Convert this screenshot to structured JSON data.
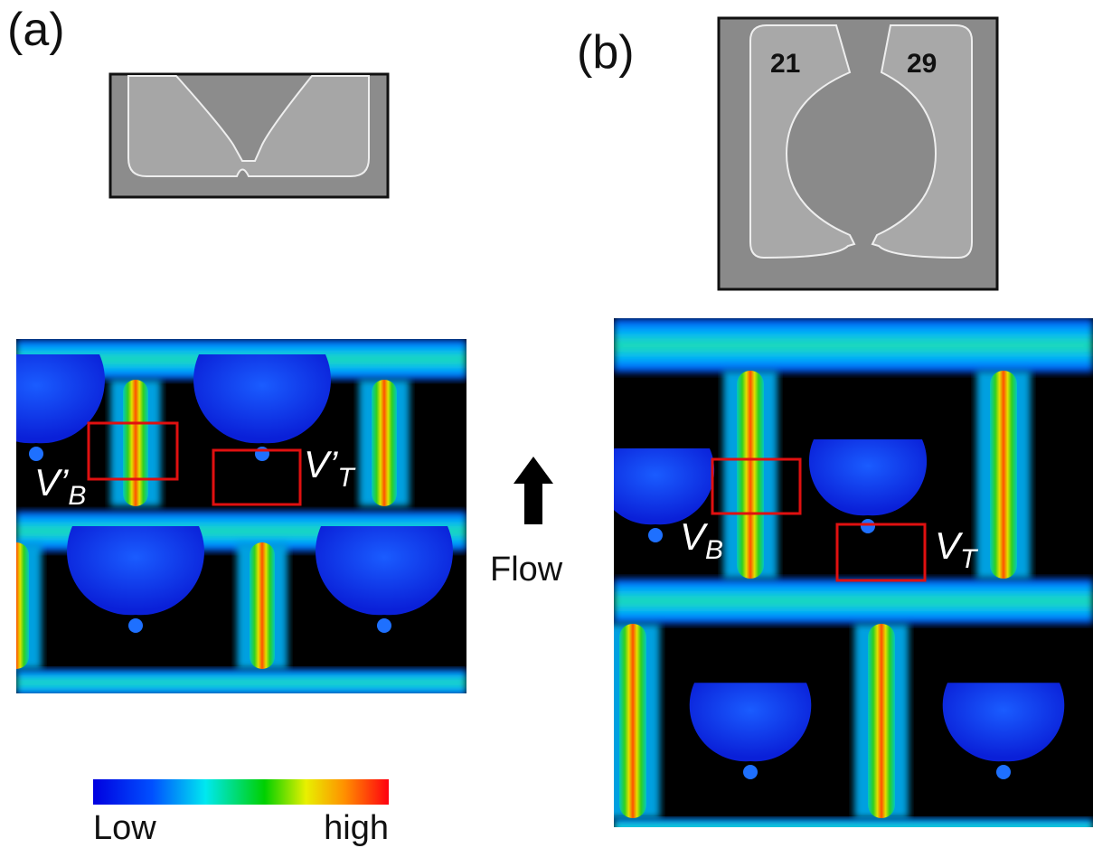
{
  "panels": [
    {
      "label": "(a)",
      "annotations": [
        {
          "main": "V’",
          "sub": "B"
        },
        {
          "main": "V’",
          "sub": "T"
        }
      ]
    },
    {
      "label": "(b)",
      "sem_numbers": [
        "21",
        "29"
      ],
      "annotations": [
        {
          "main": "V",
          "sub": "B"
        },
        {
          "main": "V",
          "sub": "T"
        }
      ]
    }
  ],
  "flow_label": "Flow",
  "colorbar": {
    "low": "Low",
    "high": "high"
  }
}
